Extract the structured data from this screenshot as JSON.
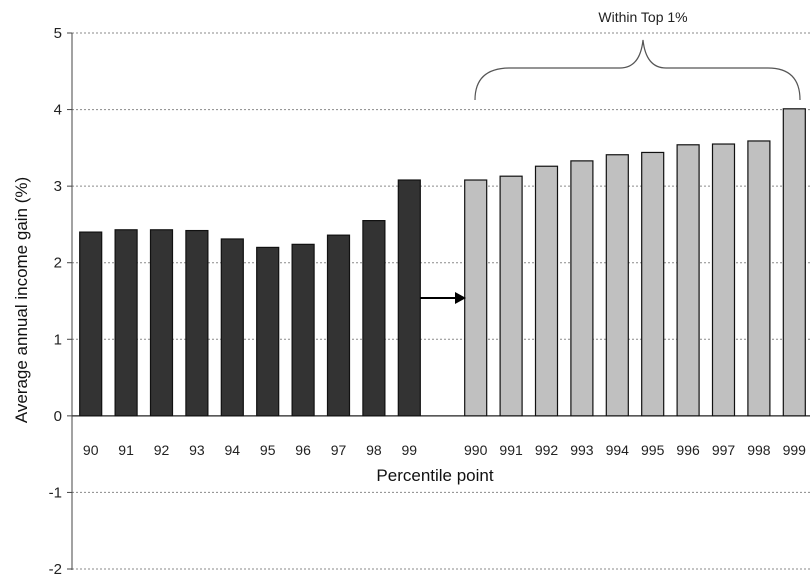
{
  "chart_data": {
    "type": "bar",
    "title": "",
    "xlabel": "Percentile point",
    "ylabel": "Average annual income gain (%)",
    "ylim": [
      -2,
      5
    ],
    "yticks": [
      "-2",
      "-1",
      "0",
      "1",
      "2",
      "3",
      "4",
      "5"
    ],
    "grid": "horizontal-dashed",
    "annotation": "Within Top 1%",
    "series": [
      {
        "group": "top-decile",
        "color": "#333333",
        "categories": [
          "90",
          "91",
          "92",
          "93",
          "94",
          "95",
          "96",
          "97",
          "98",
          "99"
        ],
        "values": [
          2.4,
          2.43,
          2.43,
          2.42,
          2.31,
          2.2,
          2.24,
          2.36,
          2.55,
          3.08
        ]
      },
      {
        "group": "within-top-1-percent",
        "color": "#c0c0c0",
        "categories": [
          "990",
          "991",
          "992",
          "993",
          "994",
          "995",
          "996",
          "997",
          "998",
          "999"
        ],
        "values": [
          3.08,
          3.13,
          3.26,
          3.33,
          3.41,
          3.44,
          3.54,
          3.55,
          3.59,
          4.01
        ]
      }
    ]
  }
}
